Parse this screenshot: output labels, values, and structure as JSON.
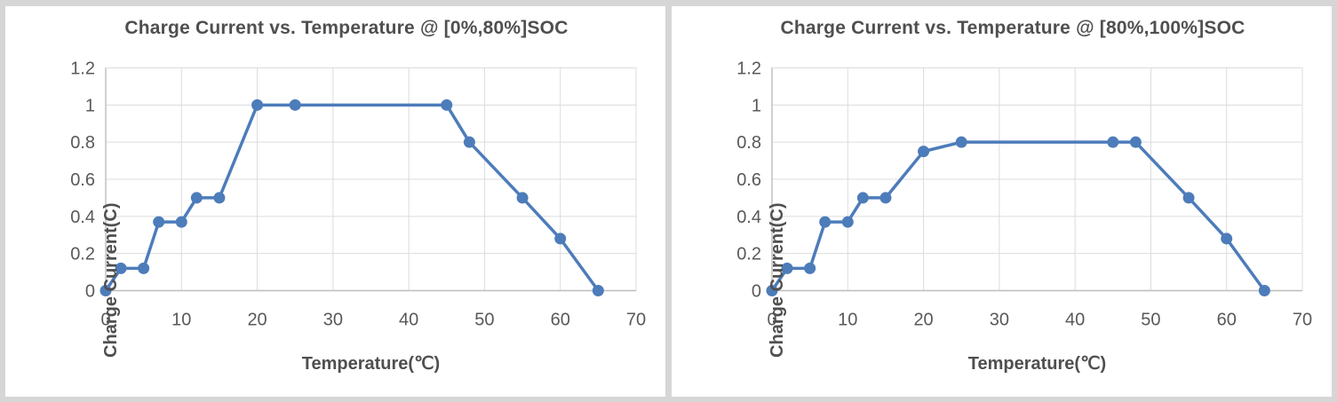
{
  "colors": {
    "series": "#4d7cba",
    "grid": "#dcdcdc",
    "plot_border": "#d9d9d9",
    "axis": "#bdbdbd",
    "title_text": "#4f4f4f",
    "tick_text": "#595959",
    "frame": "#d6d6d6",
    "panel_bg": "#ffffff"
  },
  "chart_data": [
    {
      "type": "line",
      "title": "Charge Current vs. Temperature @ [0%,80%]SOC",
      "xlabel": "Temperature(℃)",
      "ylabel": "Charge Current(C)",
      "xlim": [
        0,
        70
      ],
      "ylim": [
        0,
        1.2
      ],
      "xticks": [
        0,
        10,
        20,
        30,
        40,
        50,
        60,
        70
      ],
      "yticks": [
        0,
        0.2,
        0.4,
        0.6,
        0.8,
        1,
        1.2
      ],
      "grid": true,
      "legend": false,
      "marker": "circle",
      "series": [
        {
          "name": "Charge Current",
          "x": [
            0,
            2,
            5,
            7,
            10,
            12,
            15,
            20,
            25,
            45,
            48,
            55,
            60,
            65
          ],
          "y": [
            0,
            0.12,
            0.12,
            0.37,
            0.37,
            0.5,
            0.5,
            1,
            1,
            1,
            0.8,
            0.5,
            0.28,
            0
          ]
        }
      ]
    },
    {
      "type": "line",
      "title": "Charge Current vs. Temperature @ [80%,100%]SOC",
      "xlabel": "Temperature(℃)",
      "ylabel": "Charge Current(C)",
      "xlim": [
        0,
        70
      ],
      "ylim": [
        0,
        1.2
      ],
      "xticks": [
        0,
        10,
        20,
        30,
        40,
        50,
        60,
        70
      ],
      "yticks": [
        0,
        0.2,
        0.4,
        0.6,
        0.8,
        1,
        1.2
      ],
      "grid": true,
      "legend": false,
      "marker": "circle",
      "series": [
        {
          "name": "Charge Current",
          "x": [
            0,
            2,
            5,
            7,
            10,
            12,
            15,
            20,
            25,
            45,
            48,
            55,
            60,
            65
          ],
          "y": [
            0,
            0.12,
            0.12,
            0.37,
            0.37,
            0.5,
            0.5,
            0.75,
            0.8,
            0.8,
            0.8,
            0.5,
            0.28,
            0
          ]
        }
      ]
    }
  ]
}
